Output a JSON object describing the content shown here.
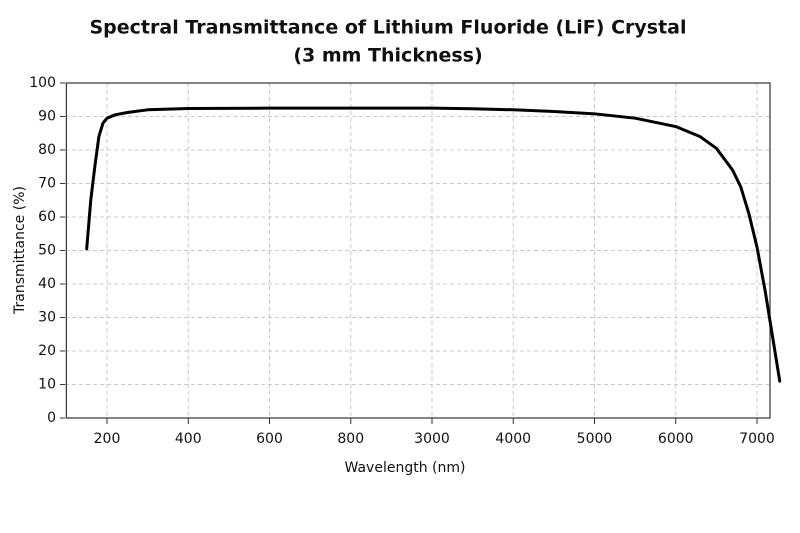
{
  "chart_data": {
    "type": "line",
    "title": "Spectral Transmittance of Lithium Fluoride (LiF) Crystal",
    "subtitle": "(3 mm Thickness)",
    "x_label": "Wavelength (nm)",
    "y_label": "Transmittance (%)",
    "x": [
      150,
      160,
      170,
      180,
      190,
      200,
      220,
      250,
      300,
      400,
      600,
      800,
      3000,
      3500,
      4000,
      4500,
      5000,
      5500,
      6000,
      6300,
      6500,
      6700,
      6800,
      6900,
      7000,
      7100,
      7200,
      7280
    ],
    "values": [
      50.5,
      65,
      75,
      84,
      88,
      89.5,
      90.5,
      91.2,
      92,
      92.4,
      92.5,
      92.5,
      92.5,
      92.3,
      92,
      91.5,
      90.8,
      89.5,
      87,
      84,
      80.5,
      74,
      69,
      61,
      51,
      38,
      23,
      11
    ],
    "color": "#000000",
    "xlim": [
      100,
      7160
    ],
    "xticks": [
      200,
      400,
      600,
      800,
      3000,
      4000,
      5000,
      6000,
      7000
    ],
    "ylim": [
      0,
      100
    ],
    "yticks": [
      0,
      10,
      20,
      30,
      40,
      50,
      60,
      70,
      80,
      90,
      100
    ],
    "grid": true
  }
}
